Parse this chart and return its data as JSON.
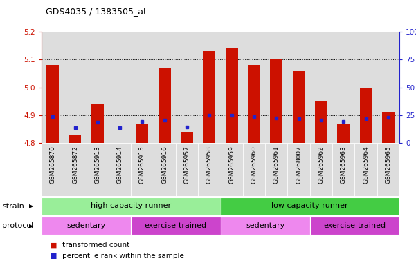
{
  "title": "GDS4035 / 1383505_at",
  "samples": [
    "GSM265870",
    "GSM265872",
    "GSM265913",
    "GSM265914",
    "GSM265915",
    "GSM265916",
    "GSM265957",
    "GSM265958",
    "GSM265959",
    "GSM265960",
    "GSM265961",
    "GSM268007",
    "GSM265962",
    "GSM265963",
    "GSM265964",
    "GSM265965"
  ],
  "red_values": [
    5.08,
    4.83,
    4.94,
    4.8,
    4.87,
    5.07,
    4.84,
    5.13,
    5.14,
    5.08,
    5.1,
    5.06,
    4.95,
    4.87,
    5.0,
    4.91
  ],
  "blue_values": [
    4.895,
    4.855,
    4.875,
    4.855,
    4.877,
    4.882,
    4.858,
    4.9,
    4.9,
    4.895,
    4.89,
    4.888,
    4.882,
    4.878,
    4.888,
    4.892
  ],
  "ymin": 4.8,
  "ymax": 5.2,
  "yticks_red": [
    4.8,
    4.9,
    5.0,
    5.1,
    5.2
  ],
  "yticks_blue_vals": [
    0,
    25,
    50,
    75,
    100
  ],
  "bar_color": "#CC1100",
  "dot_color": "#2222CC",
  "bg_color": "#DDDDDD",
  "strain_groups": [
    {
      "label": "high capacity runner",
      "start": 0,
      "end": 8,
      "color": "#99EE99"
    },
    {
      "label": "low capacity runner",
      "start": 8,
      "end": 16,
      "color": "#44CC44"
    }
  ],
  "protocol_groups": [
    {
      "label": "sedentary",
      "start": 0,
      "end": 4,
      "color": "#EE88EE"
    },
    {
      "label": "exercise-trained",
      "start": 4,
      "end": 8,
      "color": "#CC44CC"
    },
    {
      "label": "sedentary",
      "start": 8,
      "end": 12,
      "color": "#EE88EE"
    },
    {
      "label": "exercise-trained",
      "start": 12,
      "end": 16,
      "color": "#CC44CC"
    }
  ],
  "legend_items": [
    {
      "color": "#CC1100",
      "label": "transformed count"
    },
    {
      "color": "#2222CC",
      "label": "percentile rank within the sample"
    }
  ]
}
